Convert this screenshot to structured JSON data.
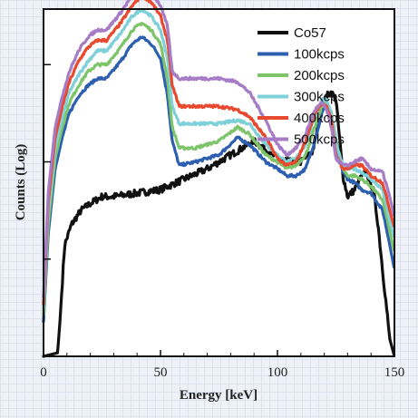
{
  "chart_data": {
    "type": "line",
    "xlabel": "Energy [keV]",
    "ylabel": "Counts (Log)",
    "xlim": [
      0,
      150
    ],
    "ylim": [
      0,
      1
    ],
    "xticks": [
      0,
      50,
      100,
      150
    ],
    "yscale": "log",
    "legend_position": "top-right",
    "series": [
      {
        "name": "Co57",
        "color": "#111111",
        "x": [
          0,
          6,
          7,
          9,
          12,
          16,
          20,
          25,
          30,
          40,
          50,
          60,
          70,
          80,
          90,
          100,
          105,
          110,
          115,
          119,
          121,
          123,
          125,
          128,
          130,
          133,
          136,
          138,
          141,
          143,
          146,
          148,
          150
        ],
        "y": [
          0.0,
          0.01,
          0.1,
          0.32,
          0.38,
          0.42,
          0.44,
          0.46,
          0.46,
          0.47,
          0.48,
          0.51,
          0.54,
          0.58,
          0.62,
          0.57,
          0.56,
          0.56,
          0.59,
          0.71,
          0.75,
          0.76,
          0.74,
          0.52,
          0.46,
          0.48,
          0.52,
          0.53,
          0.48,
          0.38,
          0.18,
          0.05,
          0.0
        ]
      },
      {
        "name": "100kcps",
        "color": "#2d5fb0",
        "x": [
          0,
          2,
          5,
          8,
          11,
          15,
          19,
          23,
          27,
          33,
          38,
          42,
          46,
          50,
          53,
          55,
          58,
          65,
          75,
          83,
          88,
          95,
          100,
          104,
          108,
          112,
          116,
          119,
          121,
          123,
          125,
          128,
          130,
          133,
          136,
          140,
          145,
          148,
          150
        ],
        "y": [
          0.1,
          0.35,
          0.54,
          0.63,
          0.7,
          0.75,
          0.78,
          0.8,
          0.8,
          0.85,
          0.9,
          0.92,
          0.9,
          0.86,
          0.75,
          0.62,
          0.55,
          0.56,
          0.58,
          0.63,
          0.61,
          0.56,
          0.54,
          0.52,
          0.52,
          0.54,
          0.62,
          0.7,
          0.73,
          0.7,
          0.62,
          0.53,
          0.51,
          0.5,
          0.48,
          0.47,
          0.42,
          0.32,
          0.25
        ]
      },
      {
        "name": "200kcps",
        "color": "#7ec46b",
        "x": [
          0,
          2,
          5,
          8,
          11,
          15,
          19,
          23,
          27,
          33,
          38,
          42,
          46,
          50,
          53,
          55,
          58,
          65,
          75,
          83,
          88,
          95,
          100,
          104,
          108,
          112,
          116,
          119,
          121,
          123,
          125,
          128,
          130,
          133,
          136,
          140,
          145,
          148,
          150
        ],
        "y": [
          0.12,
          0.38,
          0.57,
          0.66,
          0.73,
          0.78,
          0.82,
          0.84,
          0.84,
          0.89,
          0.94,
          0.96,
          0.94,
          0.9,
          0.8,
          0.66,
          0.6,
          0.6,
          0.62,
          0.66,
          0.64,
          0.58,
          0.56,
          0.54,
          0.55,
          0.58,
          0.66,
          0.72,
          0.73,
          0.7,
          0.62,
          0.54,
          0.52,
          0.52,
          0.51,
          0.49,
          0.45,
          0.36,
          0.3
        ]
      },
      {
        "name": "300kcps",
        "color": "#7fd0d8",
        "x": [
          0,
          2,
          5,
          8,
          11,
          15,
          19,
          23,
          27,
          33,
          38,
          42,
          46,
          50,
          53,
          55,
          58,
          65,
          75,
          83,
          88,
          95,
          100,
          104,
          108,
          112,
          116,
          119,
          121,
          123,
          125,
          128,
          130,
          133,
          136,
          140,
          145,
          148,
          150
        ],
        "y": [
          0.14,
          0.41,
          0.6,
          0.69,
          0.76,
          0.81,
          0.85,
          0.88,
          0.88,
          0.93,
          0.98,
          1.0,
          0.98,
          0.94,
          0.86,
          0.72,
          0.67,
          0.67,
          0.67,
          0.68,
          0.67,
          0.61,
          0.58,
          0.56,
          0.57,
          0.61,
          0.69,
          0.74,
          0.74,
          0.7,
          0.61,
          0.55,
          0.54,
          0.54,
          0.53,
          0.51,
          0.48,
          0.39,
          0.34
        ]
      },
      {
        "name": "400kcps",
        "color": "#e84a2f",
        "x": [
          0,
          2,
          5,
          8,
          11,
          15,
          19,
          23,
          27,
          33,
          38,
          42,
          46,
          50,
          53,
          55,
          58,
          65,
          75,
          83,
          88,
          95,
          100,
          104,
          108,
          112,
          116,
          119,
          121,
          123,
          125,
          128,
          130,
          133,
          136,
          140,
          145,
          148,
          150
        ],
        "y": [
          0.15,
          0.44,
          0.63,
          0.72,
          0.79,
          0.85,
          0.89,
          0.91,
          0.91,
          0.96,
          1.01,
          1.04,
          1.02,
          0.98,
          0.91,
          0.78,
          0.72,
          0.72,
          0.72,
          0.71,
          0.69,
          0.63,
          0.57,
          0.55,
          0.56,
          0.62,
          0.7,
          0.73,
          0.72,
          0.68,
          0.58,
          0.54,
          0.54,
          0.55,
          0.55,
          0.52,
          0.5,
          0.42,
          0.37
        ]
      },
      {
        "name": "500kcps",
        "color": "#a77cc6",
        "x": [
          0,
          2,
          5,
          8,
          11,
          15,
          19,
          23,
          27,
          33,
          38,
          42,
          46,
          50,
          53,
          55,
          58,
          65,
          75,
          83,
          88,
          95,
          100,
          104,
          108,
          112,
          116,
          119,
          121,
          123,
          125,
          128,
          130,
          133,
          136,
          140,
          145,
          148,
          150
        ],
        "y": [
          0.17,
          0.47,
          0.66,
          0.75,
          0.82,
          0.88,
          0.92,
          0.94,
          0.94,
          0.99,
          1.04,
          1.06,
          1.05,
          1.01,
          0.95,
          0.82,
          0.8,
          0.8,
          0.8,
          0.79,
          0.76,
          0.68,
          0.61,
          0.58,
          0.6,
          0.64,
          0.71,
          0.73,
          0.71,
          0.66,
          0.57,
          0.55,
          0.55,
          0.56,
          0.57,
          0.54,
          0.53,
          0.46,
          0.4
        ]
      }
    ]
  }
}
